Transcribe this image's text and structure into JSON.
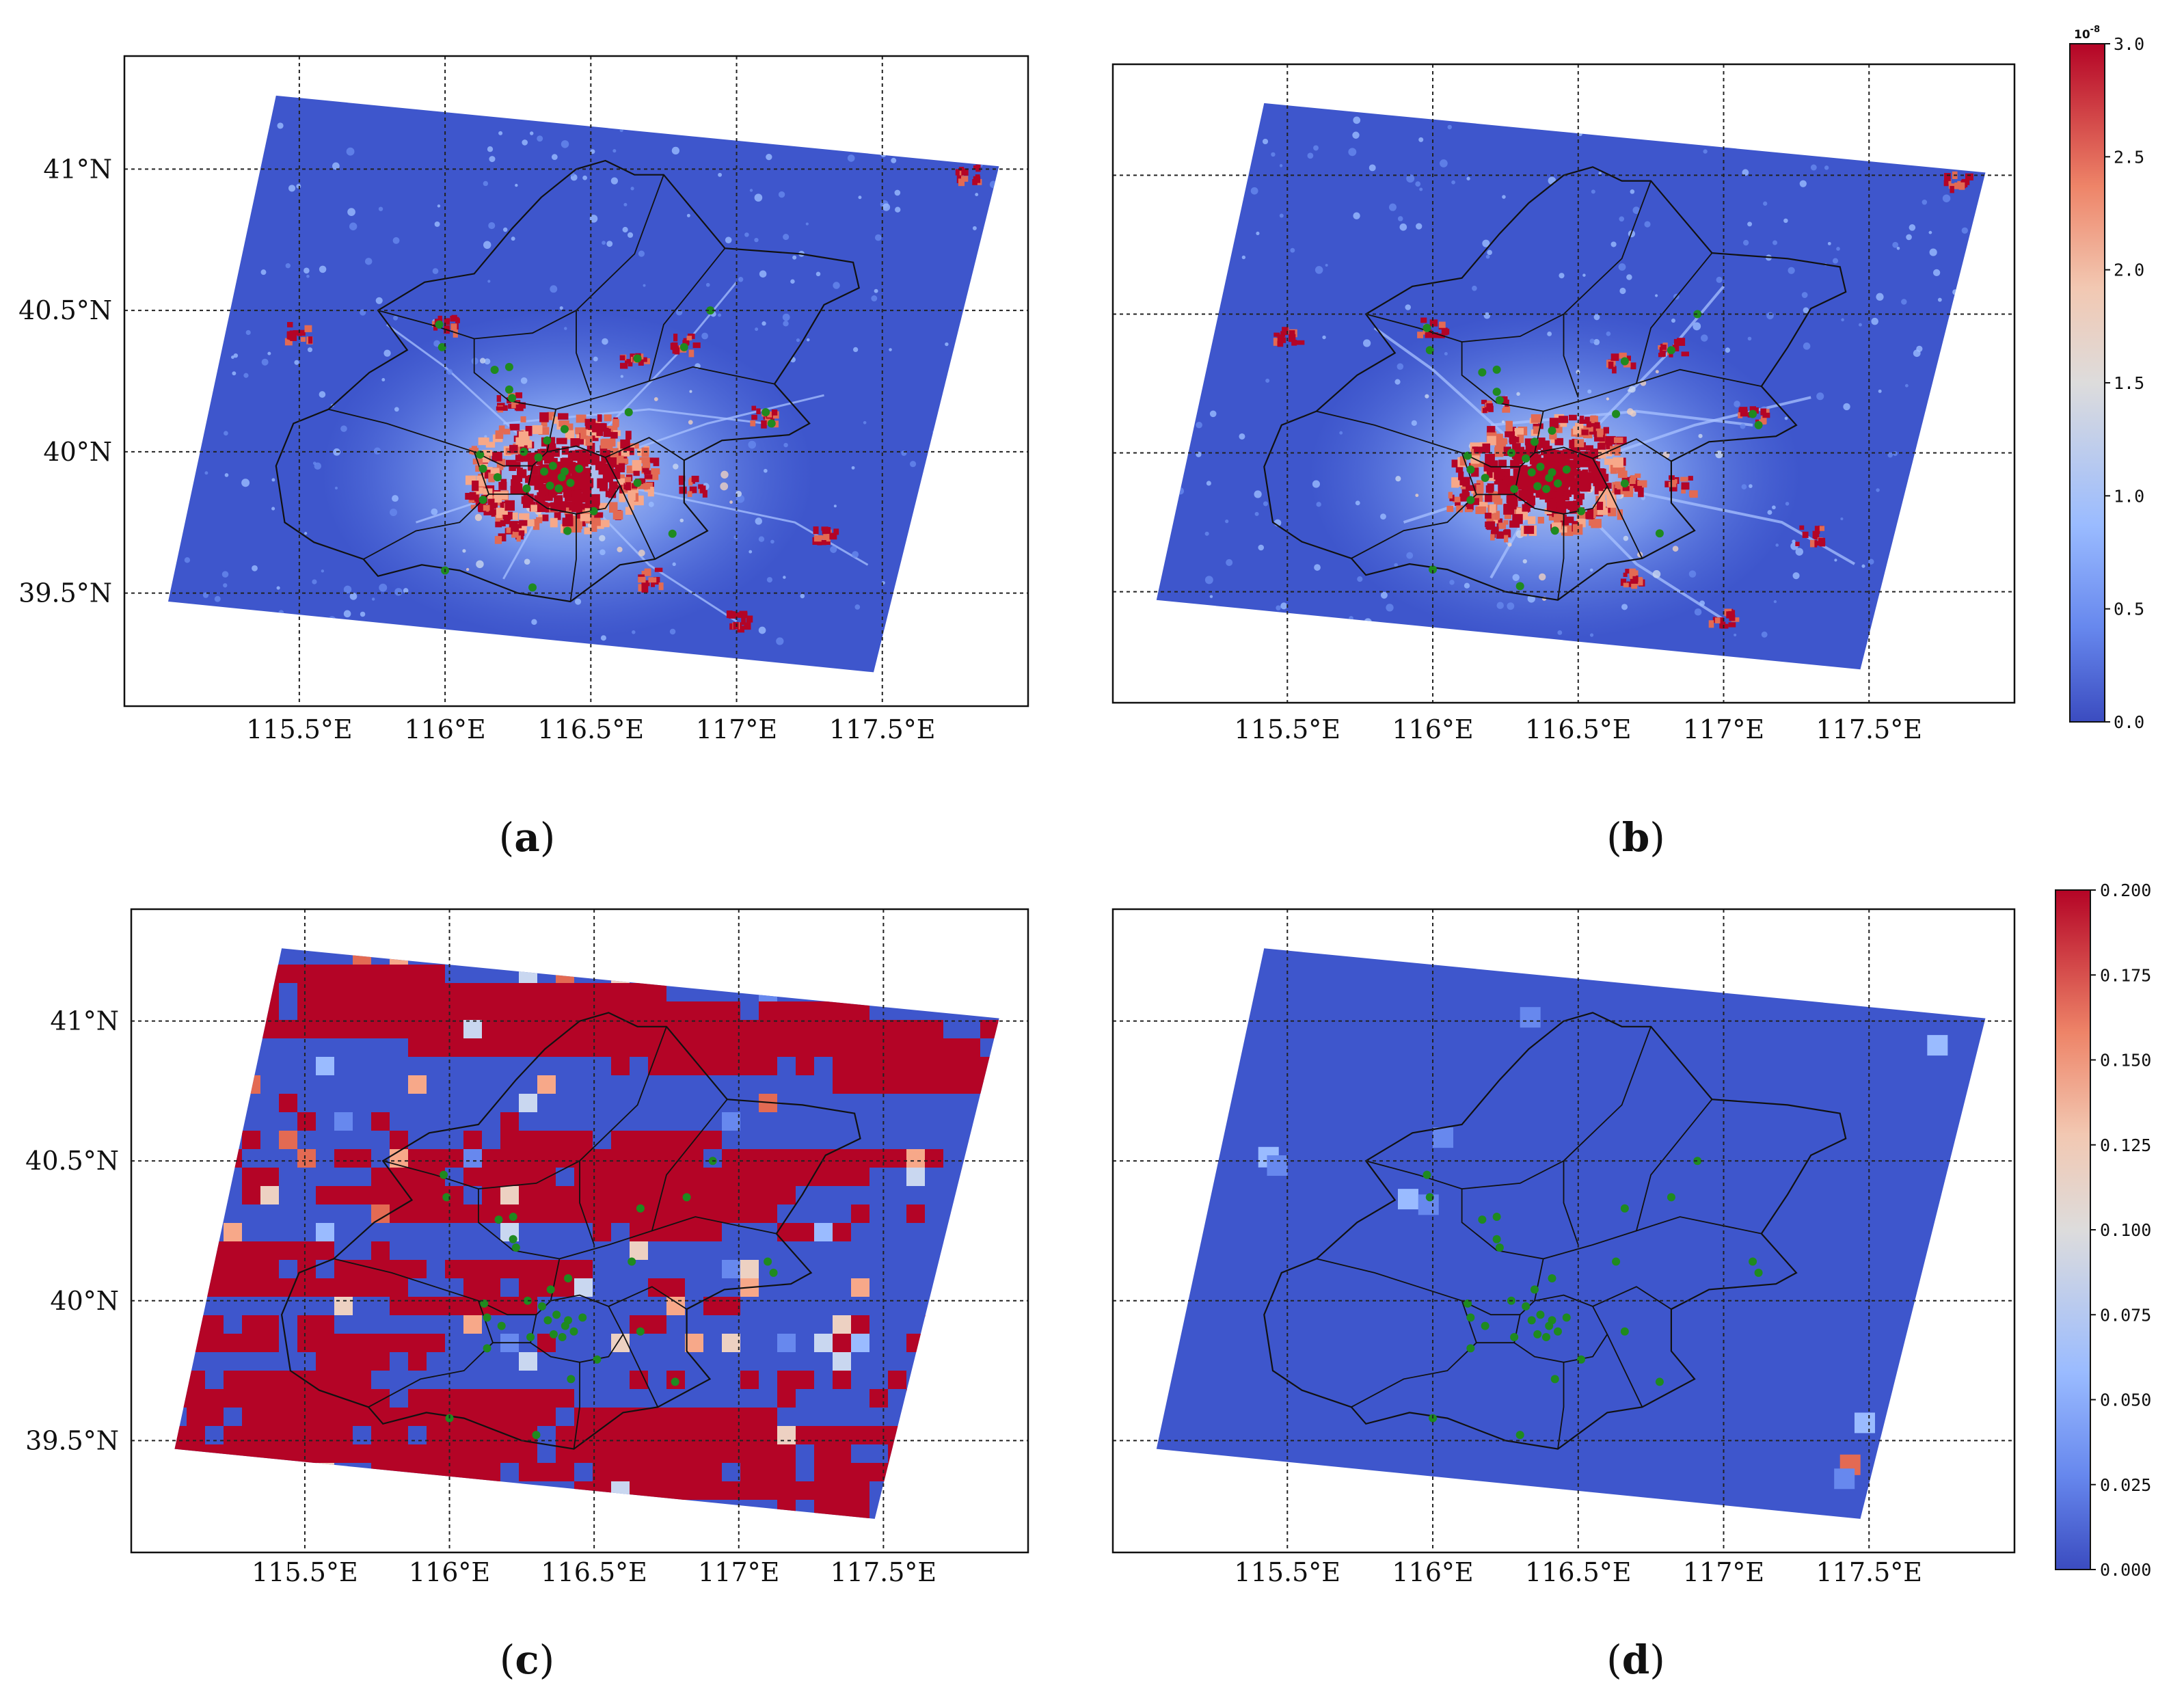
{
  "figure": {
    "panels": [
      {
        "id": "a",
        "label": "(a)",
        "letter": "a",
        "colorbar": "top"
      },
      {
        "id": "b",
        "label": "(b)",
        "letter": "b",
        "colorbar": "top"
      },
      {
        "id": "c",
        "label": "(c)",
        "letter": "c",
        "colorbar": "bottom"
      },
      {
        "id": "d",
        "label": "(d)",
        "letter": "d",
        "colorbar": "bottom"
      }
    ],
    "lon_ticks": [
      115.5,
      116.0,
      116.5,
      117.0,
      117.5
    ],
    "lon_tick_labels": [
      "115.5°E",
      "116°E",
      "116.5°E",
      "117°E",
      "117.5°E"
    ],
    "lat_ticks": [
      41.0,
      40.5,
      40.0,
      39.5
    ],
    "lat_tick_labels": [
      "41°N",
      "40.5°N",
      "40°N",
      "39.5°N"
    ],
    "lon_range": [
      114.9,
      118.0
    ],
    "lat_range": [
      39.1,
      41.4
    ]
  },
  "colorbars": {
    "top": {
      "ticks": [
        "3.0",
        "2.5",
        "2.0",
        "1.5",
        "1.0",
        "0.5",
        "0.0"
      ],
      "exponent_base": "10",
      "exponent_power": "-8",
      "range": [
        0.0,
        3.0
      ]
    },
    "bottom": {
      "ticks": [
        "0.200",
        "0.175",
        "0.150",
        "0.125",
        "0.100",
        "0.075",
        "0.050",
        "0.025",
        "0.000"
      ],
      "range": [
        0.0,
        0.2
      ]
    },
    "colors": [
      "#3b4cc0",
      "#6788ee",
      "#9abbff",
      "#c9d7f0",
      "#edd1c2",
      "#f7a889",
      "#e36a53",
      "#b40426"
    ]
  },
  "stations": [
    [
      116.17,
      40.29
    ],
    [
      116.22,
      40.22
    ],
    [
      116.23,
      40.19
    ],
    [
      116.41,
      39.93
    ],
    [
      116.4,
      39.91
    ],
    [
      116.37,
      39.95
    ],
    [
      116.34,
      39.93
    ],
    [
      116.32,
      39.98
    ],
    [
      116.36,
      39.88
    ],
    [
      116.39,
      39.87
    ],
    [
      116.43,
      39.89
    ],
    [
      116.46,
      39.94
    ],
    [
      116.28,
      39.87
    ],
    [
      116.18,
      39.91
    ],
    [
      116.13,
      39.83
    ],
    [
      116.13,
      39.94
    ],
    [
      116.12,
      39.99
    ],
    [
      116.42,
      39.72
    ],
    [
      116.51,
      39.79
    ],
    [
      116.66,
      39.89
    ],
    [
      116.63,
      40.14
    ],
    [
      116.66,
      40.33
    ],
    [
      116.82,
      40.37
    ],
    [
      116.91,
      40.5
    ],
    [
      117.1,
      40.14
    ],
    [
      117.12,
      40.1
    ],
    [
      116.78,
      39.71
    ],
    [
      116.3,
      39.52
    ],
    [
      116.0,
      39.58
    ],
    [
      115.98,
      40.45
    ],
    [
      115.99,
      40.37
    ],
    [
      116.41,
      40.08
    ],
    [
      116.22,
      40.3
    ],
    [
      116.27,
      40.0
    ],
    [
      116.35,
      40.04
    ]
  ]
}
